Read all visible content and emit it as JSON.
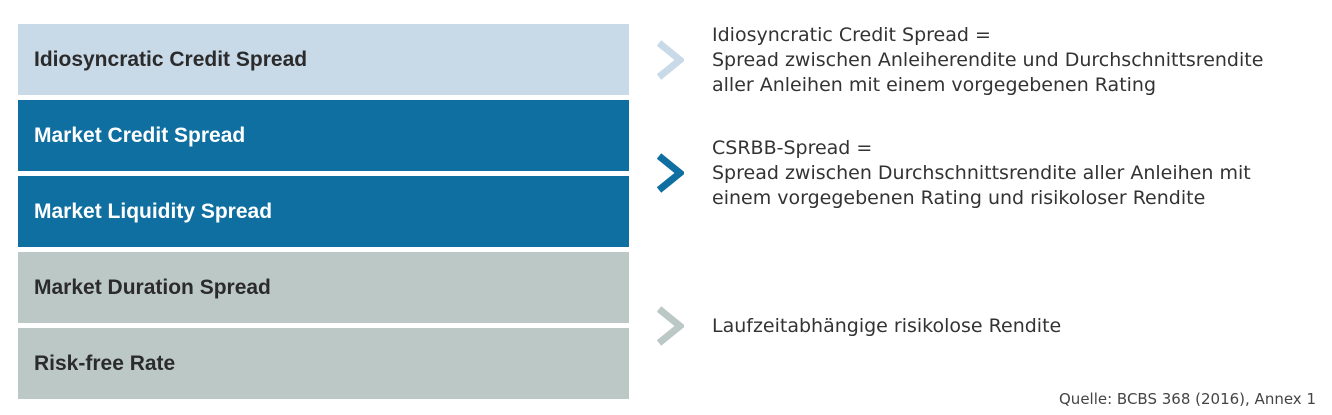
{
  "blocks": [
    {
      "label": "Idiosyncratic Credit Spread",
      "bg": "#c8d9e8",
      "fg": "#2b2b2b"
    },
    {
      "label": "Market Credit Spread",
      "bg": "#0f6fa1",
      "fg": "#ffffff"
    },
    {
      "label": "Market Liquidity Spread",
      "bg": "#0f6fa1",
      "fg": "#ffffff"
    },
    {
      "label": "Market Duration Spread",
      "bg": "#bcc8c6",
      "fg": "#2b2b2b"
    },
    {
      "label": "Risk-free Rate",
      "bg": "#bcc8c6",
      "fg": "#2b2b2b"
    }
  ],
  "arrows": [
    {
      "icon": "chevron-right-icon",
      "color": "#c8d9e8"
    },
    {
      "icon": "chevron-right-icon",
      "color": "#0f6fa1"
    },
    {
      "icon": "chevron-right-icon",
      "color": "#bcc8c6"
    }
  ],
  "descriptions": [
    {
      "lines": [
        "Idiosyncratic Credit Spread =",
        "Spread zwischen Anleiherendite und Durchschnittsrendite",
        "aller Anleihen mit einem vorgegebenen Rating"
      ]
    },
    {
      "lines": [
        "CSRBB-Spread =",
        "Spread zwischen Durchschnittsrendite aller Anleihen mit",
        "einem vorgegebenen Rating und risikoloser Rendite"
      ]
    },
    {
      "lines": [
        "Laufzeitabhängige risikolose Rendite"
      ]
    }
  ],
  "source": "Quelle: BCBS 368 (2016), Annex 1"
}
